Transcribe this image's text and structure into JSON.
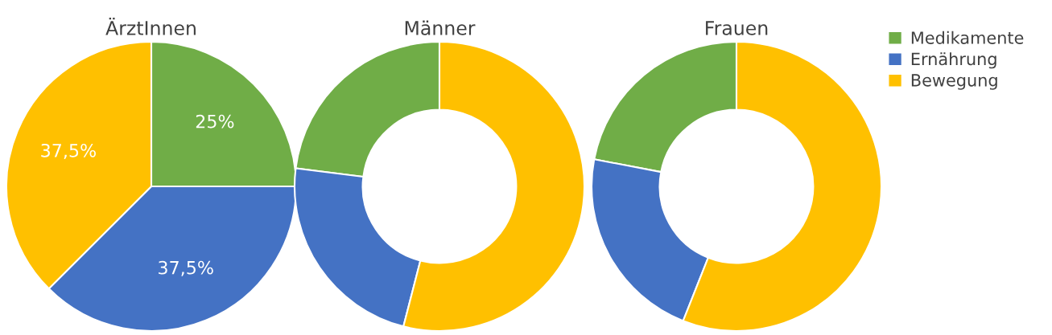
{
  "chart_data": [
    {
      "type": "pie",
      "title": "ÄrztInnen",
      "categories": [
        "Medikamente",
        "Ernährung",
        "Bewegung"
      ],
      "values": [
        25,
        37.5,
        37.5
      ],
      "value_labels": [
        "25%",
        "37,5%",
        "37,5%"
      ],
      "colors": [
        "#70ad47",
        "#4472c4",
        "#ffc000"
      ],
      "legend": "right"
    },
    {
      "type": "donut",
      "title": "Männer",
      "categories": [
        null,
        null,
        null
      ],
      "values": [
        23,
        23,
        54
      ],
      "colors": [
        "#70ad47",
        "#4472c4",
        "#ffc000"
      ]
    },
    {
      "type": "donut",
      "title": "Frauen",
      "categories": [
        null,
        null,
        null
      ],
      "values": [
        22,
        22,
        56
      ],
      "colors": [
        "#70ad47",
        "#4472c4",
        "#ffc000"
      ]
    }
  ]
}
